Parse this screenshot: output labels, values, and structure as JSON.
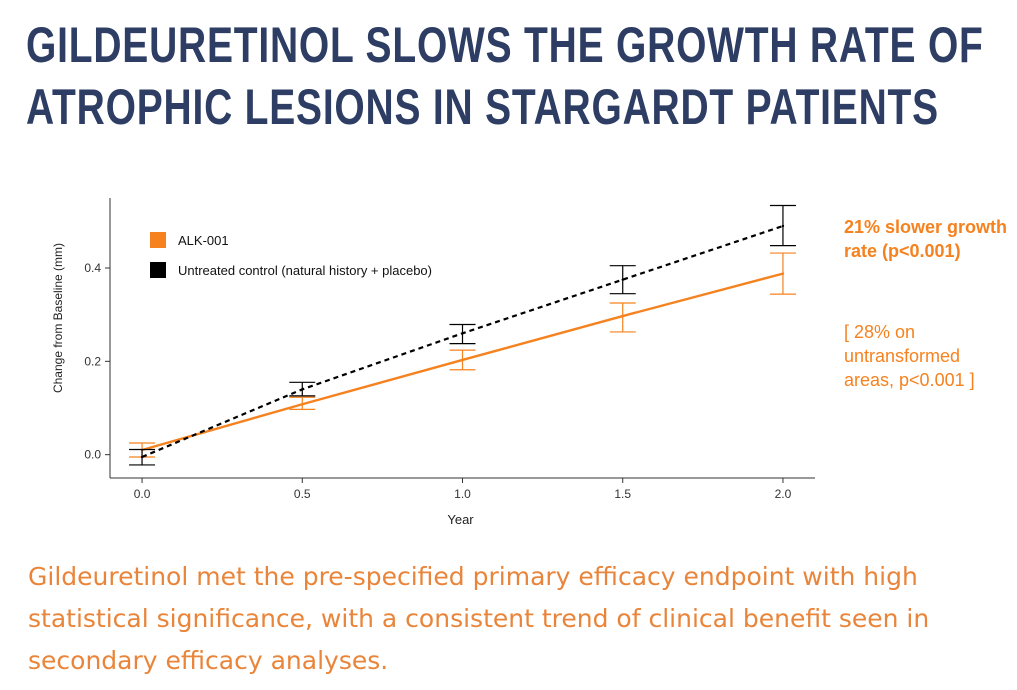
{
  "slide": {
    "title": "GILDEURETINOL SLOWS THE GROWTH RATE OF ATROPHIC LESIONS IN STARGARDT PATIENTS",
    "annotation_main": "21% slower growth rate (p<0.001)",
    "annotation_sub": "[ 28% on untransformed areas, p<0.001 ]",
    "conclusion": "Gildeuretinol met the pre-specified primary efficacy endpoint with high statistical significance, with a consistent trend of clinical benefit seen in secondary efficacy analyses."
  },
  "colors": {
    "title": "#2d3d63",
    "accent": "#f5821f",
    "control": "#000000"
  },
  "chart_data": {
    "type": "line",
    "xlabel": "Year",
    "ylabel": "Change from Baseline (mm)",
    "xlim": [
      -0.1,
      2.1
    ],
    "ylim": [
      -0.05,
      0.55
    ],
    "xticks": [
      0.0,
      0.5,
      1.0,
      1.5,
      2.0
    ],
    "xtick_labels": [
      "0.0",
      "0.5",
      "1.0",
      "1.5",
      "2.0"
    ],
    "yticks": [
      0.0,
      0.2,
      0.4
    ],
    "ytick_labels": [
      "0.0",
      "0.2",
      "0.4"
    ],
    "legend_position": "top-left",
    "series": [
      {
        "name": "ALK-001",
        "color": "#f5821f",
        "line_style": "solid",
        "x": [
          0.0,
          0.5,
          1.0,
          1.5,
          2.0
        ],
        "y": [
          0.01,
          0.108,
          0.203,
          0.297,
          0.388
        ],
        "err_low": [
          -0.005,
          0.097,
          0.182,
          0.263,
          0.344
        ],
        "err_high": [
          0.025,
          0.123,
          0.224,
          0.325,
          0.432
        ]
      },
      {
        "name": "Untreated control (natural history + placebo)",
        "color": "#000000",
        "line_style": "dashed",
        "x": [
          0.0,
          0.5,
          1.0,
          1.5,
          2.0
        ],
        "y": [
          -0.005,
          0.14,
          0.26,
          0.375,
          0.49
        ],
        "err_low": [
          -0.022,
          0.126,
          0.238,
          0.345,
          0.448
        ],
        "err_high": [
          0.011,
          0.155,
          0.279,
          0.405,
          0.534
        ]
      }
    ]
  }
}
